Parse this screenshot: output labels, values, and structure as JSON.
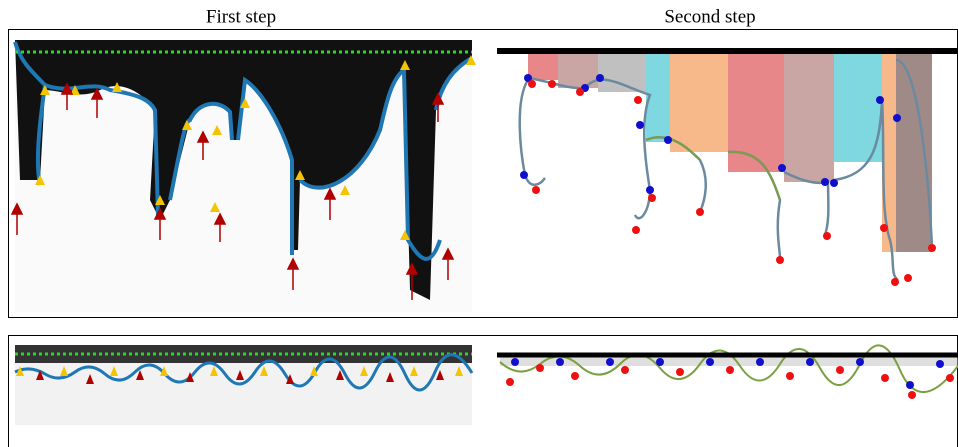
{
  "header": {
    "titles": [
      "First step",
      "Second step"
    ]
  }
}
